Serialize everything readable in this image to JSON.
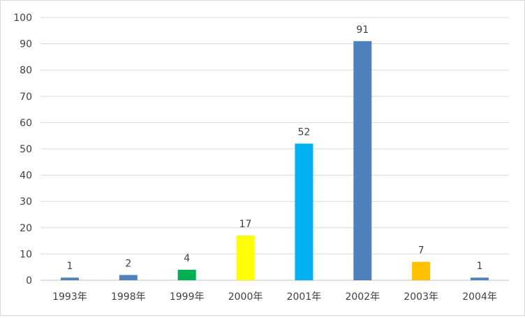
{
  "chart_data": {
    "type": "bar",
    "title": "",
    "xlabel": "",
    "ylabel": "",
    "categories": [
      "1993年",
      "1998年",
      "1999年",
      "2000年",
      "2001年",
      "2002年",
      "2003年",
      "2004年"
    ],
    "values": [
      1,
      2,
      4,
      17,
      52,
      91,
      7,
      1
    ],
    "bar_colors": [
      "#4f81bd",
      "#4f81bd",
      "#00b050",
      "#ffff00",
      "#00b0f0",
      "#4f81bd",
      "#ffc000",
      "#4f81bd"
    ],
    "ylim": [
      0,
      100
    ],
    "yticks": [
      0,
      10,
      20,
      30,
      40,
      50,
      60,
      70,
      80,
      90,
      100
    ],
    "grid": true,
    "legend": "none",
    "data_labels": true
  }
}
